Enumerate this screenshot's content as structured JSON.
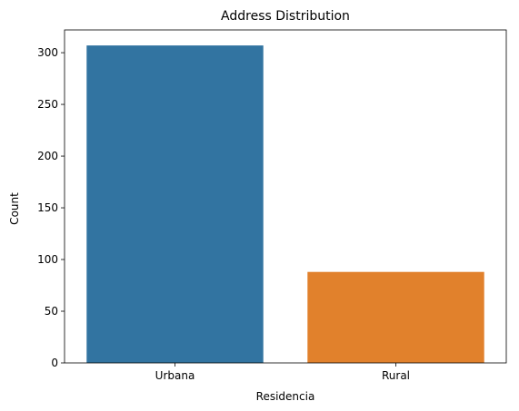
{
  "chart_data": {
    "type": "bar",
    "title": "Address Distribution",
    "xlabel": "Residencia",
    "ylabel": "Count",
    "categories": [
      "Urbana",
      "Rural"
    ],
    "values": [
      307,
      88
    ],
    "colors": [
      "#3274a1",
      "#e1812c"
    ],
    "ylim": [
      0,
      322
    ],
    "yticks": [
      0,
      50,
      100,
      150,
      200,
      250,
      300
    ],
    "grid": false
  }
}
